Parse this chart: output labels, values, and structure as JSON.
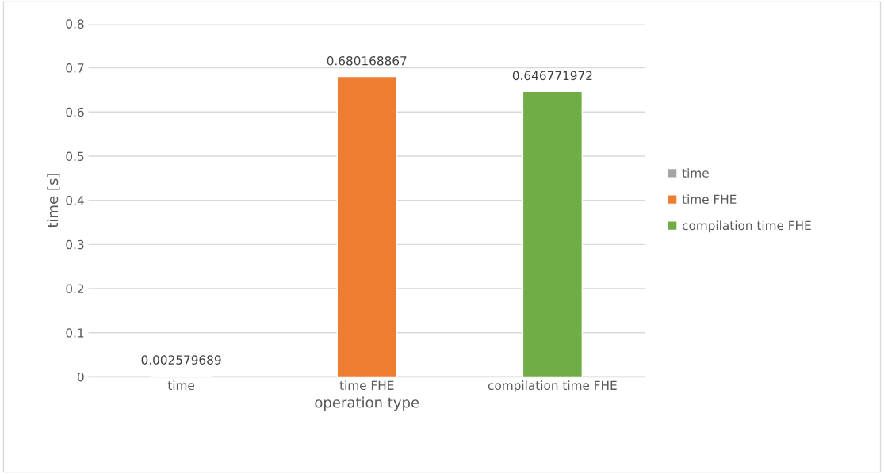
{
  "chart_data": {
    "type": "bar",
    "xlabel": "operation type",
    "ylabel": "time [s]",
    "categories": [
      "time",
      "time FHE",
      "compilation time FHE"
    ],
    "series": [
      {
        "name": "time",
        "color": "#a5a5a5",
        "values": [
          0.002579689,
          null,
          null
        ]
      },
      {
        "name": "time FHE",
        "color": "#ed7d31",
        "values": [
          null,
          0.680168867,
          null
        ]
      },
      {
        "name": "compilation time FHE",
        "color": "#70ad47",
        "values": [
          null,
          null,
          0.646771972
        ]
      }
    ],
    "ylim": [
      0,
      0.8
    ],
    "yticks": [
      0,
      0.1,
      0.2,
      0.3,
      0.4,
      0.5,
      0.6,
      0.7,
      0.8
    ],
    "grid": "y",
    "legend": "right",
    "data_labels": true
  }
}
